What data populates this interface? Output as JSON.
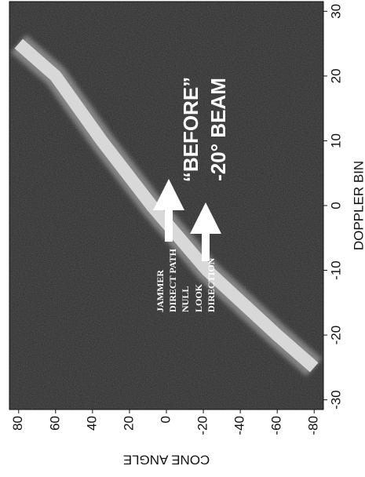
{
  "chart_data": {
    "type": "line",
    "title": "“BEFORE”",
    "subtitle": "-20° BEAM",
    "x_label": "DOPPLER BIN",
    "y_label": "CONE ANGLE",
    "x": [
      25,
      20,
      10,
      0,
      -10,
      -20,
      -25
    ],
    "series": [
      {
        "name": "",
        "color": "#d8d8d8",
        "values": [
          80,
          60,
          35,
          8,
          -22,
          -60,
          -80
        ]
      }
    ],
    "xlim": [
      -31.5,
      31.5
    ],
    "ylim": [
      -85,
      85
    ],
    "xticks": [
      -30,
      -20,
      -10,
      0,
      10,
      20,
      30
    ],
    "yticks": [
      -80,
      -60,
      -40,
      -20,
      0,
      20,
      40,
      60,
      80
    ],
    "annotations": [
      "JAMMER",
      "DIRECT PATH",
      "NULL",
      "LOOK",
      "DIRECTION"
    ],
    "background": "#262626"
  }
}
